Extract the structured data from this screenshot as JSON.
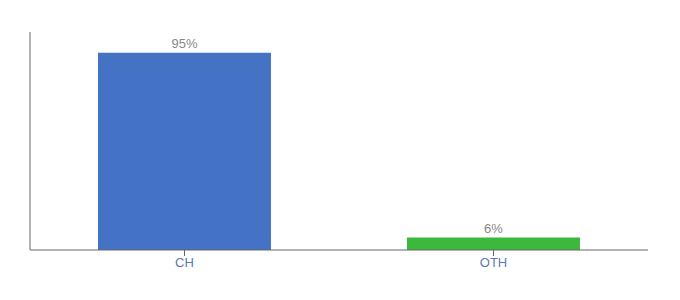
{
  "chart_data": {
    "type": "bar",
    "categories": [
      "CH",
      "OTH"
    ],
    "values": [
      95,
      6
    ],
    "value_labels": [
      "95%",
      "6%"
    ],
    "colors": [
      "#4472c4",
      "#3cb93c"
    ],
    "ylim": [
      0,
      105
    ],
    "data_labels": true,
    "tick_labels": "x",
    "grid": false
  }
}
